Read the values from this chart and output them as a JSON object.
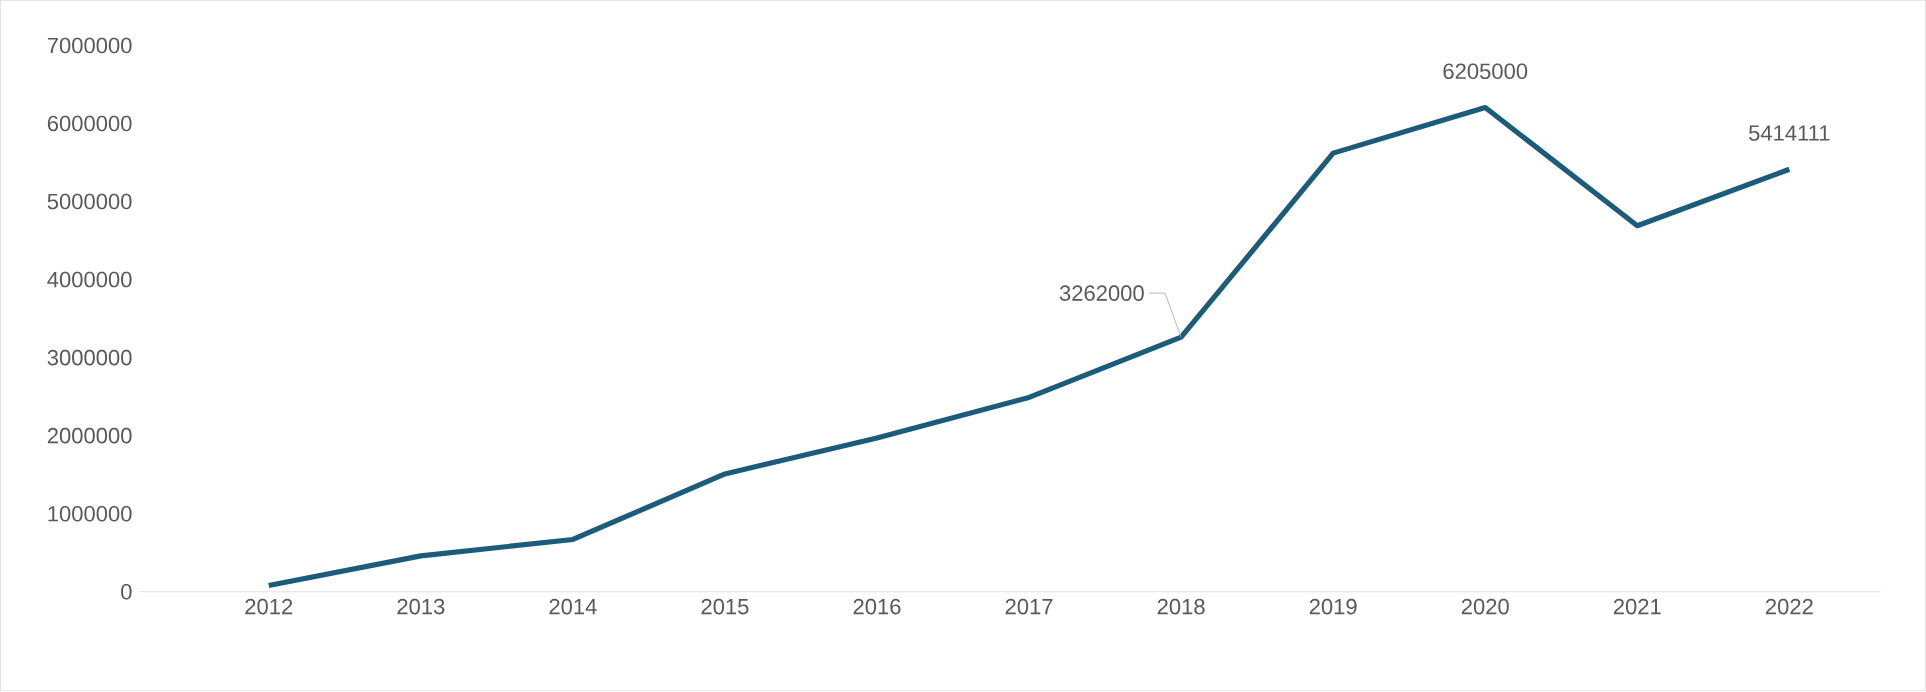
{
  "chart_data": {
    "type": "line",
    "categories": [
      "2012",
      "2013",
      "2014",
      "2015",
      "2016",
      "2017",
      "2018",
      "2019",
      "2020",
      "2021",
      "2022"
    ],
    "series": [
      {
        "color": "#1b5b7b",
        "values": [
          80000,
          460000,
          670000,
          1510000,
          1970000,
          2490000,
          3262000,
          5620000,
          6205000,
          4690000,
          5414111
        ],
        "value_labels": [
          null,
          null,
          null,
          null,
          null,
          null,
          "3262000",
          null,
          "6205000",
          null,
          "5414111"
        ]
      }
    ],
    "ylim": [
      0,
      7000000
    ],
    "yticks": [
      0,
      1000000,
      2000000,
      3000000,
      4000000,
      5000000,
      6000000,
      7000000
    ],
    "grid": false,
    "marker": "none",
    "line_style": "solid"
  }
}
